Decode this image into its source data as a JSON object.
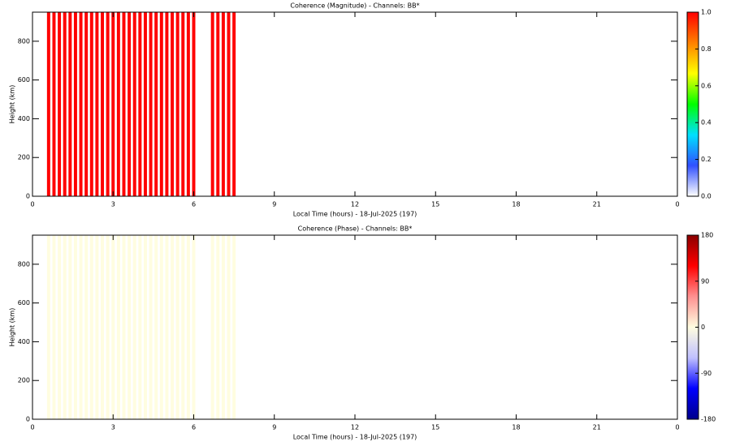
{
  "chart_data": [
    {
      "type": "heatmap",
      "title": "Coherence (Magnitude) - Channels: BB*",
      "xlabel": "Local Time (hours) - 18-Jul-2025 (197)",
      "ylabel": "Height (km)",
      "x": [
        0.6,
        0.8,
        1.0,
        1.2,
        1.4,
        1.6,
        1.8,
        2.0,
        2.2,
        2.4,
        2.6,
        2.8,
        3.0,
        3.2,
        3.4,
        3.6,
        3.8,
        4.0,
        4.2,
        4.4,
        4.6,
        4.8,
        5.0,
        5.2,
        5.4,
        5.6,
        5.8,
        6.0,
        6.7,
        6.9,
        7.1,
        7.3,
        7.5
      ],
      "values": [
        1,
        1,
        1,
        1,
        1,
        1,
        1,
        1,
        1,
        1,
        1,
        1,
        1,
        1,
        1,
        1,
        1,
        1,
        1,
        1,
        1,
        1,
        1,
        1,
        1,
        1,
        1,
        1,
        1,
        1,
        1,
        1,
        1
      ],
      "xlim": [
        0,
        24
      ],
      "xticks": [
        0,
        3,
        6,
        9,
        12,
        15,
        18,
        21,
        {
          "value": 24,
          "label": "0"
        }
      ],
      "ylim": [
        0,
        950
      ],
      "yticks": [
        0,
        200,
        400,
        600,
        800
      ],
      "clim": [
        0,
        1
      ],
      "cticks": [
        {
          "value": 0,
          "label": "0.0"
        },
        0.2,
        0.4,
        0.6,
        0.8,
        {
          "value": 1,
          "label": "1.0"
        }
      ],
      "colorscale": [
        "#ffffff",
        "#3050ff",
        "#00e0ff",
        "#00ff00",
        "#ffff00",
        "#ff8000",
        "#ff0000"
      ]
    },
    {
      "type": "heatmap",
      "title": "Coherence (Phase) - Channels: BB*",
      "xlabel": "Local Time (hours) - 18-Jul-2025 (197)",
      "ylabel": "Height (km)",
      "x": [
        0.6,
        0.8,
        1.0,
        1.2,
        1.4,
        1.6,
        1.8,
        2.0,
        2.2,
        2.4,
        2.6,
        2.8,
        3.0,
        3.2,
        3.4,
        3.6,
        3.8,
        4.0,
        4.2,
        4.4,
        4.6,
        4.8,
        5.0,
        5.2,
        5.4,
        5.6,
        5.8,
        6.0,
        6.7,
        6.9,
        7.1,
        7.3,
        7.5
      ],
      "values": [
        0,
        0,
        0,
        0,
        0,
        0,
        0,
        0,
        0,
        0,
        0,
        0,
        0,
        0,
        0,
        0,
        0,
        0,
        0,
        0,
        0,
        0,
        0,
        0,
        0,
        0,
        0,
        0,
        0,
        0,
        0,
        0,
        0
      ],
      "xlim": [
        0,
        24
      ],
      "xticks": [
        0,
        3,
        6,
        9,
        12,
        15,
        18,
        21,
        {
          "value": 24,
          "label": "0"
        }
      ],
      "ylim": [
        0,
        950
      ],
      "yticks": [
        0,
        200,
        400,
        600,
        800
      ],
      "clim": [
        -180,
        180
      ],
      "cticks": [
        -180,
        -90,
        0,
        90,
        180
      ],
      "colorscale": [
        "#00008b",
        "#0000ff",
        "#c0c0ff",
        "#fffde0",
        "#ff9090",
        "#ff0000",
        "#8b0000"
      ]
    }
  ]
}
